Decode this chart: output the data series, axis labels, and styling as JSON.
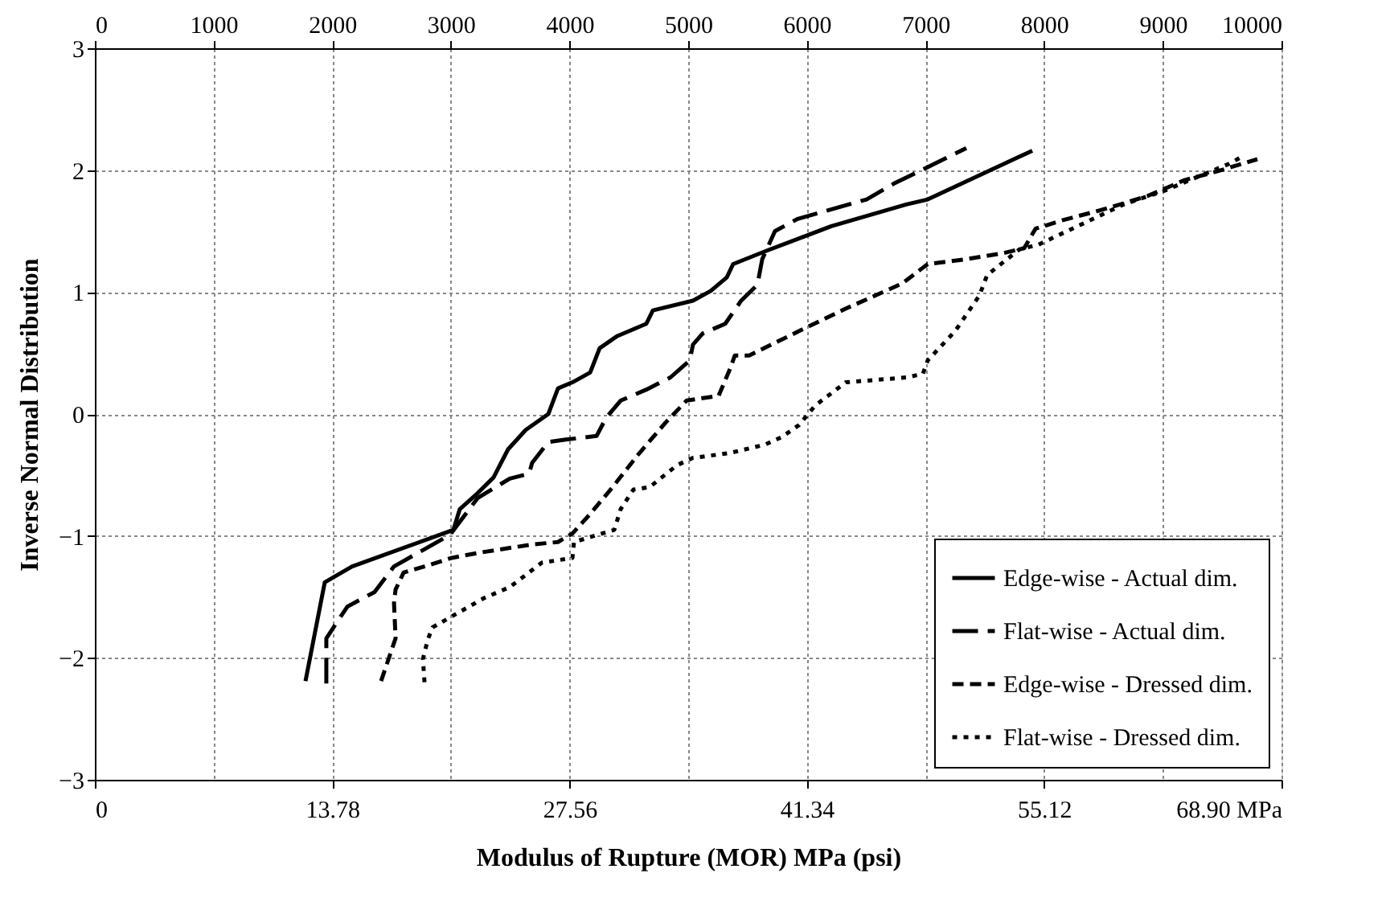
{
  "chart_data": {
    "type": "line",
    "xlabel": "Modulus of Rupture (MOR) MPa (psi)",
    "ylabel": "Inverse Normal Distribution",
    "xlim": [
      0,
      68.9
    ],
    "xticks": [
      0,
      13.78,
      27.56,
      41.34,
      55.12,
      {
        "value": 68.9,
        "label": "68.90 MPa"
      }
    ],
    "x2lim": [
      0,
      10000
    ],
    "x2ticks": [
      0,
      1000,
      2000,
      3000,
      4000,
      5000,
      6000,
      7000,
      8000,
      9000,
      10000
    ],
    "ylim": [
      -3,
      3
    ],
    "yticks": [
      -3,
      -2,
      -1,
      0,
      1,
      2,
      3
    ],
    "grid": true,
    "legend": "bottom right",
    "marker": "none",
    "series": [
      {
        "name": "Edge-wise - Actual dim.",
        "color": "#000000",
        "line_style": "solid",
        "x": [
          12.23,
          13.35,
          14.94,
          20.82,
          21.19,
          22.22,
          23.15,
          23.99,
          25.02,
          26.33,
          26.89,
          27.73,
          28.76,
          29.31,
          30.34,
          32.02,
          32.4,
          34.73,
          35.76,
          36.69,
          37.06,
          39.02,
          42.76,
          47.15,
          48.36,
          54.43
        ],
        "values": [
          -2.19,
          -1.38,
          -1.25,
          -0.95,
          -0.78,
          -0.65,
          -0.52,
          -0.29,
          -0.13,
          0,
          0.21,
          0.26,
          0.34,
          0.54,
          0.64,
          0.74,
          0.85,
          0.93,
          1.01,
          1.12,
          1.23,
          1.34,
          1.54,
          1.72,
          1.76,
          2.16
        ]
      },
      {
        "name": "Flat-wise - Actual dim.",
        "color": "#000000",
        "line_style": "dashed",
        "x": [
          13.44,
          13.44,
          14.66,
          16.24,
          17.37,
          20.63,
          22.22,
          24.09,
          25.21,
          25.39,
          26.33,
          27.35,
          29.13,
          29.69,
          30.53,
          32.02,
          33.42,
          34.54,
          34.73,
          35.29,
          36.6,
          37.53,
          38.47,
          38.75,
          39.49,
          40.8,
          44.81,
          46.4,
          50.6
        ],
        "values": [
          -2.21,
          -1.84,
          -1.58,
          -1.46,
          -1.25,
          -0.99,
          -0.69,
          -0.53,
          -0.49,
          -0.4,
          -0.23,
          -0.21,
          -0.18,
          -0.03,
          0.11,
          0.2,
          0.3,
          0.44,
          0.57,
          0.66,
          0.74,
          0.93,
          1.06,
          1.27,
          1.5,
          1.6,
          1.76,
          1.89,
          2.18
        ]
      },
      {
        "name": "Edge-wise - Dressed dim.",
        "color": "#000000",
        "line_style": "dashed",
        "x": [
          16.62,
          17.46,
          17.37,
          17.46,
          17.93,
          19.14,
          20.73,
          22.22,
          25.39,
          26.89,
          27.73,
          28.76,
          30.06,
          31.56,
          33.14,
          34.36,
          36.22,
          36.88,
          37.16,
          37.99,
          40.89,
          43.69,
          46.87,
          48.36,
          50.6,
          52.75,
          53.96,
          54.62,
          56.2,
          58.35,
          59.56,
          61.15,
          63.3,
          65.16,
          67.5
        ],
        "values": [
          -2.19,
          -1.84,
          -1.55,
          -1.44,
          -1.3,
          -1.25,
          -1.18,
          -1.14,
          -1.07,
          -1.05,
          -0.98,
          -0.82,
          -0.6,
          -0.33,
          -0.07,
          0.11,
          0.15,
          0.37,
          0.48,
          0.48,
          0.68,
          0.87,
          1.07,
          1.23,
          1.27,
          1.32,
          1.36,
          1.52,
          1.59,
          1.67,
          1.72,
          1.79,
          1.92,
          1.99,
          2.09
        ]
      },
      {
        "name": "Flat-wise - Dressed dim.",
        "color": "#000000",
        "line_style": "dotted",
        "x": [
          19.14,
          19.05,
          19.33,
          19.61,
          20.73,
          22.59,
          24.09,
          25.95,
          27.73,
          27.82,
          29.22,
          30.16,
          30.53,
          31.27,
          32.21,
          33.8,
          34.73,
          36.88,
          38.93,
          39.87,
          40.89,
          41.83,
          43.6,
          47.15,
          48.08,
          48.36,
          49.95,
          51.35,
          51.81,
          53.68,
          54.8,
          59.75,
          62.08,
          63.77,
          65.82,
          66.75
        ],
        "values": [
          -2.2,
          -2.01,
          -1.85,
          -1.75,
          -1.66,
          -1.51,
          -1.42,
          -1.22,
          -1.18,
          -1.05,
          -0.99,
          -0.95,
          -0.78,
          -0.62,
          -0.6,
          -0.42,
          -0.36,
          -0.32,
          -0.25,
          -0.19,
          -0.09,
          0.07,
          0.26,
          0.3,
          0.33,
          0.44,
          0.68,
          0.97,
          1.14,
          1.35,
          1.39,
          1.72,
          1.83,
          1.93,
          2.05,
          2.12
        ]
      }
    ]
  }
}
